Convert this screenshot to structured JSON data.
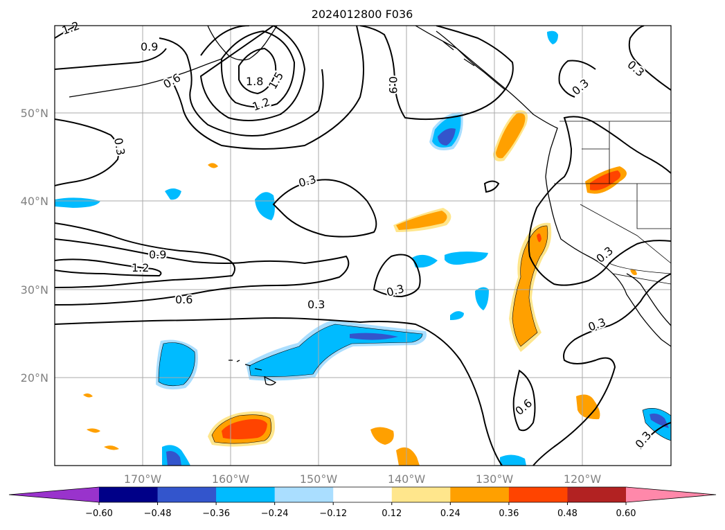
{
  "title": "2024012800 F036",
  "latitude_labels": [
    "50°N",
    "40°N",
    "30°N",
    "20°N"
  ],
  "longitude_labels": [
    "170°W",
    "160°W",
    "150°W",
    "140°W",
    "130°W",
    "120°W"
  ],
  "colorbar": {
    "ticks": [
      "−0.60",
      "−0.48",
      "−0.36",
      "−0.24",
      "−0.12",
      "0.12",
      "0.24",
      "0.36",
      "0.48",
      "0.60"
    ],
    "colors": [
      "#9933cc",
      "#000088",
      "#3355cc",
      "#00bbff",
      "#aadeff",
      "#ffffff",
      "#ffe68c",
      "#ffa000",
      "#ff4400",
      "#b22222",
      "#ff88aa"
    ]
  },
  "contour_labels": [
    "1.2",
    "0.9",
    "0.6",
    "1.8",
    "1.5",
    "1.2",
    "0.3",
    "0.9",
    "0.3",
    "0.3",
    "0.9",
    "1.2",
    "0.6",
    "0.3",
    "0.3",
    "0.3",
    "0.3",
    "0.6",
    "0.3",
    "0.3"
  ],
  "fill_colors": {
    "light_blue": "#aadeff",
    "blue": "#00bbff",
    "medium_blue": "#3355cc",
    "yellow": "#ffe68c",
    "orange": "#ffa000",
    "red": "#ff4400"
  }
}
